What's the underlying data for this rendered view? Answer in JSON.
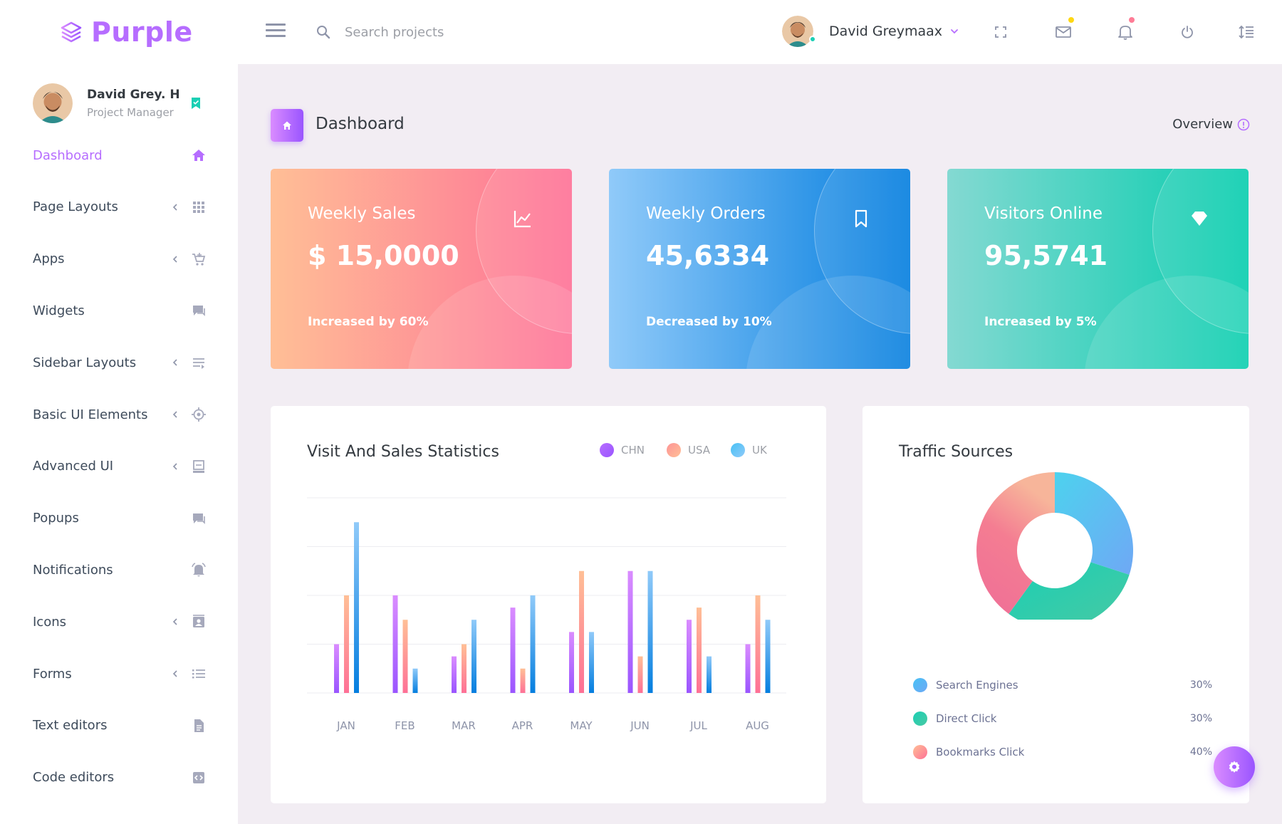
{
  "brand": {
    "name": "Purple"
  },
  "navbar": {
    "search_placeholder": "Search projects",
    "user_name": "David Greymaax"
  },
  "sidebar": {
    "profile": {
      "name": "David Grey. H",
      "role": "Project Manager"
    },
    "items": [
      {
        "label": "Dashboard",
        "icon": "home-icon",
        "active": true,
        "arrow": false
      },
      {
        "label": "Page Layouts",
        "icon": "apps-grid-icon",
        "active": false,
        "arrow": true
      },
      {
        "label": "Apps",
        "icon": "cart-icon",
        "active": false,
        "arrow": true
      },
      {
        "label": "Widgets",
        "icon": "chat-icon",
        "active": false,
        "arrow": false
      },
      {
        "label": "Sidebar Layouts",
        "icon": "list-icon",
        "active": false,
        "arrow": true
      },
      {
        "label": "Basic UI Elements",
        "icon": "target-icon",
        "active": false,
        "arrow": true
      },
      {
        "label": "Advanced UI",
        "icon": "monitor-icon",
        "active": false,
        "arrow": true
      },
      {
        "label": "Popups",
        "icon": "chat-icon",
        "active": false,
        "arrow": false
      },
      {
        "label": "Notifications",
        "icon": "bell-icon",
        "active": false,
        "arrow": false
      },
      {
        "label": "Icons",
        "icon": "contacts-icon",
        "active": false,
        "arrow": true
      },
      {
        "label": "Forms",
        "icon": "form-list-icon",
        "active": false,
        "arrow": true
      },
      {
        "label": "Text editors",
        "icon": "document-icon",
        "active": false,
        "arrow": false
      },
      {
        "label": "Code editors",
        "icon": "code-icon",
        "active": false,
        "arrow": false
      }
    ]
  },
  "page": {
    "title": "Dashboard",
    "overview_label": "Overview"
  },
  "stats": [
    {
      "title": "Weekly Sales",
      "value": "$ 15,0000",
      "footer": "Increased by 60%",
      "icon": "chart-line-icon"
    },
    {
      "title": "Weekly Orders",
      "value": "45,6334",
      "footer": "Decreased by 10%",
      "icon": "bookmark-icon"
    },
    {
      "title": "Visitors Online",
      "value": "95,5741",
      "footer": "Increased by 5%",
      "icon": "diamond-icon"
    }
  ],
  "visit_chart": {
    "title": "Visit And Sales Statistics",
    "legend": [
      {
        "name": "CHN",
        "color": "#b66dff"
      },
      {
        "name": "USA",
        "color": "#fe9496"
      },
      {
        "name": "UK",
        "color": "#47c1f5"
      }
    ]
  },
  "traffic": {
    "title": "Traffic Sources",
    "rows": [
      {
        "label": "Search Engines",
        "value": "30%",
        "color": "#47c1f5"
      },
      {
        "label": "Direct Click",
        "value": "30%",
        "color": "#1bcfb4"
      },
      {
        "label": "Bookmarks Click",
        "value": "40%",
        "color": "#fe7c96"
      }
    ]
  },
  "chart_data": [
    {
      "type": "bar",
      "title": "Visit And Sales Statistics",
      "categories": [
        "JAN",
        "FEB",
        "MAR",
        "APR",
        "MAY",
        "JUN",
        "JUL",
        "AUG"
      ],
      "series": [
        {
          "name": "CHN",
          "values": [
            20,
            40,
            15,
            35,
            25,
            50,
            30,
            20
          ]
        },
        {
          "name": "USA",
          "values": [
            40,
            30,
            20,
            10,
            50,
            15,
            35,
            40
          ]
        },
        {
          "name": "UK",
          "values": [
            70,
            10,
            30,
            40,
            25,
            50,
            15,
            30
          ]
        }
      ],
      "ylim": [
        0,
        80
      ],
      "grid": true
    },
    {
      "type": "pie",
      "title": "Traffic Sources",
      "labels": [
        "Search Engines",
        "Direct Click",
        "Bookmarks Click"
      ],
      "values": [
        30,
        30,
        40
      ],
      "donut": true
    }
  ]
}
